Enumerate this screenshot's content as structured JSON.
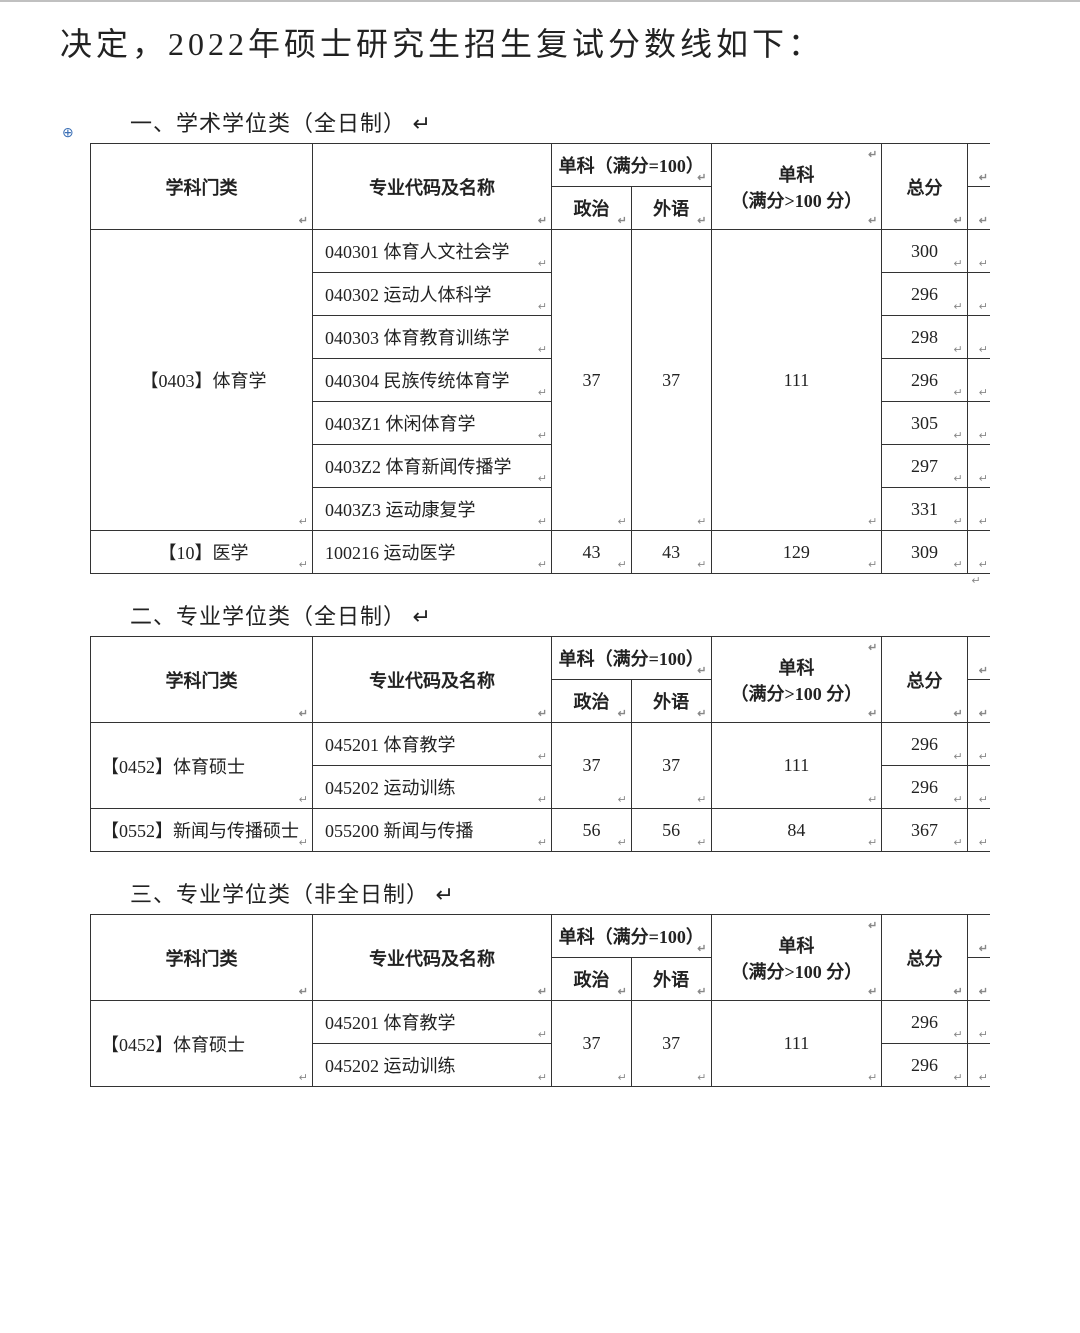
{
  "intro_text": "决定，2022年硕士研究生招生复试分数线如下：",
  "para_mark": "↵",
  "cell_mark": "↵",
  "headers": {
    "category": "学科门类",
    "major": "专业代码及名称",
    "sub100_group": "单科（满分=100）",
    "politics": "政治",
    "foreign": "外语",
    "sub_over100": "单科（满分>100 分）",
    "total": "总分"
  },
  "sections": [
    {
      "heading": "一、学术学位类（全日制）",
      "show_anchor": true,
      "show_corner": true,
      "groups": [
        {
          "category": "【0403】体育学",
          "cat_align": "center",
          "politics": "37",
          "foreign": "37",
          "over100": "111",
          "majors": [
            {
              "name": "040301  体育人文社会学",
              "total": "300"
            },
            {
              "name": "040302  运动人体科学",
              "total": "296"
            },
            {
              "name": "040303  体育教育训练学",
              "total": "298"
            },
            {
              "name": "040304  民族传统体育学",
              "total": "296"
            },
            {
              "name": "0403Z1  休闲体育学",
              "total": "305"
            },
            {
              "name": "0403Z2  体育新闻传播学",
              "total": "297"
            },
            {
              "name": "0403Z3  运动康复学",
              "total": "331"
            }
          ]
        },
        {
          "category": "【10】医学",
          "cat_align": "center",
          "politics": "43",
          "foreign": "43",
          "over100": "129",
          "majors": [
            {
              "name": "100216  运动医学",
              "total": "309"
            }
          ]
        }
      ]
    },
    {
      "heading": "二、专业学位类（全日制）",
      "show_anchor": false,
      "show_corner": false,
      "groups": [
        {
          "category": "【0452】体育硕士",
          "cat_align": "left",
          "politics": "37",
          "foreign": "37",
          "over100": "111",
          "majors": [
            {
              "name": "045201  体育教学",
              "total": "296"
            },
            {
              "name": "045202  运动训练",
              "total": "296"
            }
          ]
        },
        {
          "category": "【0552】新闻与传播硕士",
          "cat_align": "left",
          "politics": "56",
          "foreign": "56",
          "over100": "84",
          "majors": [
            {
              "name": "055200  新闻与传播",
              "total": "367"
            }
          ]
        }
      ]
    },
    {
      "heading": "三、专业学位类（非全日制）",
      "show_anchor": false,
      "show_corner": false,
      "groups": [
        {
          "category": "【0452】体育硕士",
          "cat_align": "left",
          "politics": "37",
          "foreign": "37",
          "over100": "111",
          "majors": [
            {
              "name": "045201  体育教学",
              "total": "296"
            },
            {
              "name": "045202  运动训练",
              "total": "296"
            }
          ]
        }
      ]
    }
  ]
}
